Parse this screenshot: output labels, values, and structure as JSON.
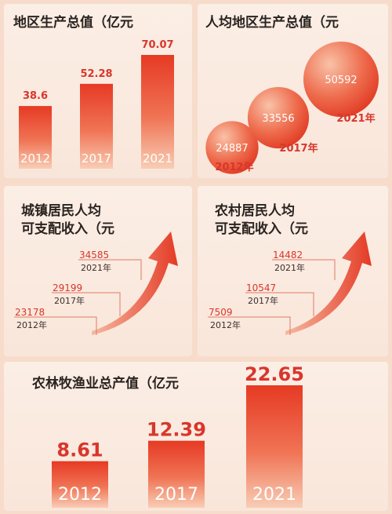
{
  "colors": {
    "accent": "#e8432c",
    "label_red": "#d9362b",
    "dark_text": "#2a2320",
    "bg": "#f7dccb"
  },
  "panels": {
    "gdp": {
      "title": "地区生产总值（亿元"
    },
    "gdp_per_capita": {
      "title": "人均地区生产总值（元"
    },
    "urban_income": {
      "title_line1": "城镇居民人均",
      "title_line2": "可支配收入（元"
    },
    "rural_income": {
      "title_line1": "农村居民人均",
      "title_line2": "可支配收入（元"
    },
    "agri_output": {
      "title": "农林牧渔业总产值（亿元"
    }
  },
  "chart_data": [
    {
      "type": "bar",
      "title": "地区生产总值（亿元",
      "categories": [
        "2012",
        "2017",
        "2021"
      ],
      "values": [
        38.6,
        52.28,
        70.07
      ],
      "value_labels": [
        "38.6",
        "52.28",
        "70.07"
      ]
    },
    {
      "type": "scatter",
      "title": "人均地区生产总值（元",
      "categories": [
        "2012年",
        "2017年",
        "2021年"
      ],
      "values": [
        24887,
        33556,
        50592
      ]
    },
    {
      "type": "line",
      "title": "城镇居民人均可支配收入（元",
      "categories": [
        "2012年",
        "2017年",
        "2021年"
      ],
      "values": [
        23178,
        29199,
        34585
      ]
    },
    {
      "type": "line",
      "title": "农村居民人均可支配收入（元",
      "categories": [
        "2012年",
        "2017年",
        "2021年"
      ],
      "values": [
        7509,
        10547,
        14482
      ]
    },
    {
      "type": "bar",
      "title": "农林牧渔业总产值（亿元",
      "categories": [
        "2012",
        "2017",
        "2021"
      ],
      "values": [
        8.61,
        12.39,
        22.65
      ],
      "value_labels": [
        "8.61",
        "12.39",
        "22.65"
      ]
    }
  ]
}
